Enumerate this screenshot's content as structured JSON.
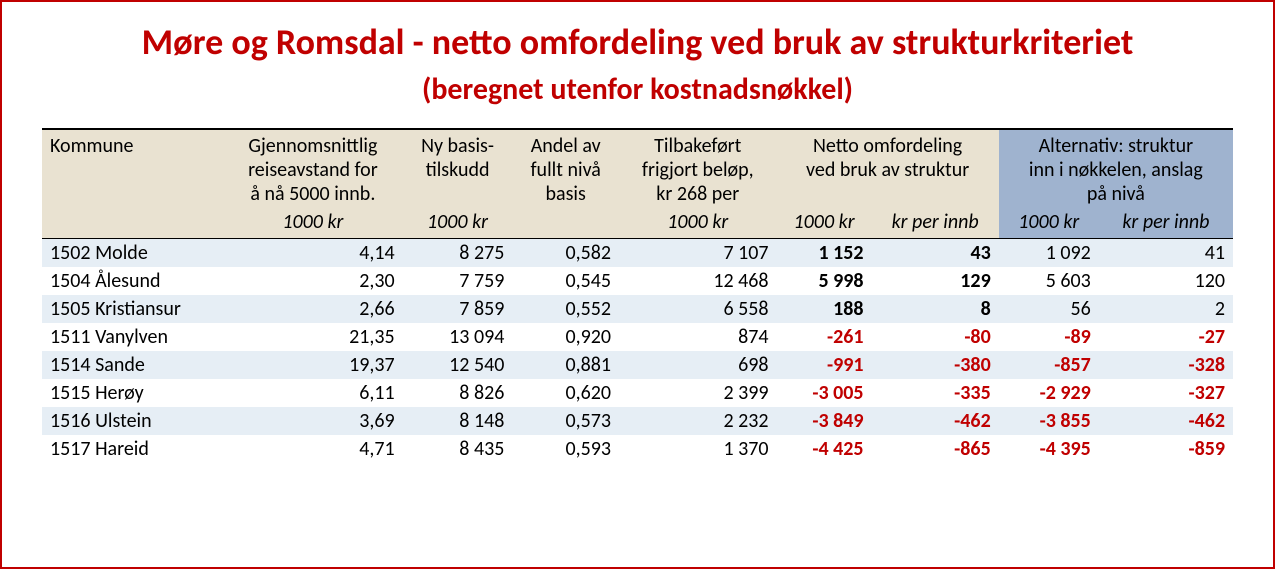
{
  "title_main": "Møre og Romsdal - netto omfordeling ved bruk av strukturkriteriet",
  "title_sub": "(beregnet utenfor kostnadsnøkkel)",
  "colors": {
    "accent_red": "#c00000",
    "beige": "#e9e2d1",
    "header_blue": "#9fb3cf",
    "row_blue": "#e6eef5",
    "white": "#ffffff",
    "black": "#000000",
    "negative": "#c00000"
  },
  "headers": {
    "kommune": "Kommune",
    "reise": "Gjennomsnittlig reiseavstand for å nå 5000 innb.",
    "nybasis": "Ny basis-tilskudd",
    "andel": "Andel av fullt nivå basis",
    "tilbake": "Tilbakeført frigjort beløp, kr 268 per",
    "netto": "Netto omfordeling ved bruk av struktur",
    "alt": "Alternativ: struktur inn i nøkkelen, anslag på nivå",
    "u_1000kr": "1000 kr",
    "u_krper": "kr per innb"
  },
  "rows": [
    {
      "kommune": "1502 Molde",
      "reise": "4,14",
      "nybasis": "8 275",
      "andel": "0,582",
      "tilbake": "7 107",
      "n1000": "1 152",
      "nkr": "43",
      "a1000": "1 092",
      "akr": "41",
      "neg": false,
      "alt_neg": false,
      "zebra": true
    },
    {
      "kommune": "1504 Ålesund",
      "reise": "2,30",
      "nybasis": "7 759",
      "andel": "0,545",
      "tilbake": "12 468",
      "n1000": "5 998",
      "nkr": "129",
      "a1000": "5 603",
      "akr": "120",
      "neg": false,
      "alt_neg": false,
      "zebra": false
    },
    {
      "kommune": "1505 Kristiansur",
      "reise": "2,66",
      "nybasis": "7 859",
      "andel": "0,552",
      "tilbake": "6 558",
      "n1000": "188",
      "nkr": "8",
      "a1000": "56",
      "akr": "2",
      "neg": false,
      "alt_neg": false,
      "zebra": true
    },
    {
      "kommune": "1511 Vanylven",
      "reise": "21,35",
      "nybasis": "13 094",
      "andel": "0,920",
      "tilbake": "874",
      "n1000": "-261",
      "nkr": "-80",
      "a1000": "-89",
      "akr": "-27",
      "neg": true,
      "alt_neg": true,
      "zebra": false
    },
    {
      "kommune": "1514 Sande",
      "reise": "19,37",
      "nybasis": "12 540",
      "andel": "0,881",
      "tilbake": "698",
      "n1000": "-991",
      "nkr": "-380",
      "a1000": "-857",
      "akr": "-328",
      "neg": true,
      "alt_neg": true,
      "zebra": true
    },
    {
      "kommune": "1515 Herøy",
      "reise": "6,11",
      "nybasis": "8 826",
      "andel": "0,620",
      "tilbake": "2 399",
      "n1000": "-3 005",
      "nkr": "-335",
      "a1000": "-2 929",
      "akr": "-327",
      "neg": true,
      "alt_neg": true,
      "zebra": false
    },
    {
      "kommune": "1516 Ulstein",
      "reise": "3,69",
      "nybasis": "8 148",
      "andel": "0,573",
      "tilbake": "2 232",
      "n1000": "-3 849",
      "nkr": "-462",
      "a1000": "-3 855",
      "akr": "-462",
      "neg": true,
      "alt_neg": true,
      "zebra": true
    },
    {
      "kommune": "1517 Hareid",
      "reise": "4,71",
      "nybasis": "8 435",
      "andel": "0,593",
      "tilbake": "1 370",
      "n1000": "-4 425",
      "nkr": "-865",
      "a1000": "-4 395",
      "akr": "-859",
      "neg": true,
      "alt_neg": true,
      "zebra": false
    }
  ]
}
